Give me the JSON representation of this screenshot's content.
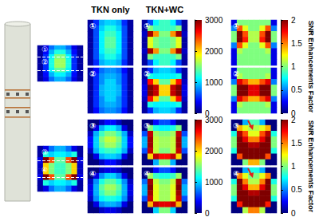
{
  "chart_data": {
    "type": "heatmap",
    "tick_labels": false,
    "column_titles": [
      "TKN only",
      "TKN+WC"
    ],
    "signal": {
      "color_range": [
        0,
        3000
      ],
      "colorbar_ticks": [
        0,
        1000,
        2000,
        3000
      ]
    },
    "factor": {
      "color_range": [
        0,
        2
      ],
      "colorbar_ticks": [
        0,
        0.5,
        1,
        1.5,
        2
      ],
      "colorbar_label": "SNR Enhancements Factor"
    },
    "overview": [
      {
        "slice_lines": [
          {
            "label": "①",
            "row": 2
          },
          {
            "label": "②",
            "row": 5
          }
        ],
        "cells": [
          [
            100,
            300,
            700,
            900,
            900,
            700,
            300,
            100
          ],
          [
            100,
            400,
            900,
            1200,
            1200,
            900,
            400,
            100
          ],
          [
            100,
            500,
            1100,
            1500,
            1500,
            1100,
            500,
            100
          ],
          [
            100,
            500,
            1200,
            1600,
            1600,
            1200,
            500,
            100
          ],
          [
            100,
            500,
            1200,
            1600,
            1600,
            1200,
            500,
            100
          ],
          [
            100,
            500,
            1100,
            1400,
            1400,
            1100,
            500,
            100
          ],
          [
            100,
            400,
            900,
            1100,
            1100,
            900,
            400,
            100
          ],
          [
            100,
            300,
            700,
            900,
            900,
            700,
            300,
            100
          ]
        ]
      },
      {
        "slice_lines": [
          {
            "label": "③",
            "row": 2
          },
          {
            "label": "④",
            "row": 5
          }
        ],
        "cells": [
          [
            100,
            300,
            700,
            900,
            900,
            700,
            300,
            100
          ],
          [
            100,
            1200,
            1000,
            1100,
            1100,
            1000,
            1200,
            100
          ],
          [
            300,
            3000,
            2400,
            1400,
            1400,
            2400,
            3000,
            300
          ],
          [
            200,
            2000,
            1500,
            1300,
            1300,
            1500,
            2000,
            200
          ],
          [
            200,
            2000,
            1500,
            1300,
            1300,
            1500,
            2000,
            200
          ],
          [
            300,
            3000,
            2400,
            1400,
            1400,
            2400,
            3000,
            300
          ],
          [
            100,
            1200,
            1000,
            1100,
            1100,
            1000,
            1200,
            100
          ],
          [
            100,
            300,
            700,
            900,
            900,
            700,
            300,
            100
          ]
        ]
      }
    ],
    "rows": [
      {
        "label": "①",
        "tkn": [
          [
            100,
            500,
            900,
            1000,
            1000,
            900,
            500,
            100
          ],
          [
            100,
            600,
            1000,
            1200,
            1200,
            1000,
            600,
            100
          ],
          [
            100,
            600,
            1100,
            1300,
            1300,
            1100,
            600,
            100
          ],
          [
            100,
            600,
            1100,
            1400,
            1400,
            1100,
            600,
            100
          ],
          [
            100,
            600,
            1100,
            1400,
            1400,
            1100,
            600,
            100
          ],
          [
            100,
            600,
            1100,
            1300,
            1300,
            1100,
            600,
            100
          ],
          [
            100,
            600,
            1000,
            1200,
            1200,
            1000,
            600,
            100
          ],
          [
            100,
            500,
            900,
            1000,
            1000,
            900,
            500,
            100
          ]
        ],
        "tkn_wc": [
          [
            100,
            600,
            1100,
            1300,
            1300,
            1100,
            600,
            100
          ],
          [
            100,
            1500,
            1300,
            1300,
            1300,
            1300,
            1500,
            100
          ],
          [
            200,
            2900,
            2200,
            1500,
            1500,
            2200,
            2900,
            200
          ],
          [
            100,
            1800,
            1500,
            1400,
            1400,
            1500,
            1800,
            100
          ],
          [
            100,
            1800,
            1500,
            1400,
            1400,
            1500,
            1800,
            100
          ],
          [
            200,
            2900,
            2200,
            1500,
            1500,
            2200,
            2900,
            200
          ],
          [
            100,
            1500,
            1300,
            1300,
            1300,
            1300,
            1500,
            100
          ],
          [
            100,
            600,
            1100,
            1300,
            1300,
            1100,
            600,
            100
          ]
        ],
        "factor": [
          [
            0.2,
            1.0,
            1.0,
            1.0,
            1.0,
            1.0,
            1.0,
            0.2
          ],
          [
            0.5,
            1.6,
            1.2,
            1.0,
            1.0,
            1.2,
            1.6,
            0.5
          ],
          [
            1.0,
            2.0,
            1.6,
            1.1,
            1.1,
            1.6,
            2.0,
            1.0
          ],
          [
            1.0,
            2.0,
            1.7,
            1.1,
            1.1,
            1.7,
            2.0,
            1.0
          ],
          [
            0.5,
            1.6,
            1.2,
            1.0,
            1.0,
            1.2,
            1.6,
            0.5
          ],
          [
            0.2,
            1.1,
            1.0,
            1.0,
            1.0,
            1.0,
            1.1,
            0.2
          ],
          [
            0.2,
            1.0,
            1.0,
            1.0,
            1.0,
            1.0,
            1.0,
            0.2
          ],
          [
            0.2,
            1.0,
            1.0,
            1.0,
            1.0,
            1.0,
            1.0,
            0.2
          ]
        ]
      },
      {
        "label": "②",
        "tkn": [
          [
            100,
            400,
            700,
            800,
            800,
            700,
            400,
            100
          ],
          [
            100,
            500,
            800,
            900,
            900,
            800,
            500,
            100
          ],
          [
            100,
            500,
            800,
            1000,
            1000,
            800,
            500,
            100
          ],
          [
            100,
            500,
            900,
            1000,
            1000,
            900,
            500,
            100
          ],
          [
            100,
            500,
            900,
            1000,
            1000,
            900,
            500,
            100
          ],
          [
            100,
            500,
            800,
            1000,
            1000,
            800,
            500,
            100
          ],
          [
            100,
            500,
            800,
            900,
            900,
            800,
            500,
            100
          ],
          [
            100,
            400,
            700,
            800,
            800,
            700,
            400,
            100
          ]
        ],
        "tkn_wc": [
          [
            100,
            500,
            900,
            1000,
            1000,
            900,
            500,
            100
          ],
          [
            100,
            1200,
            1100,
            1100,
            1100,
            1100,
            1200,
            100
          ],
          [
            200,
            2600,
            2000,
            1400,
            1400,
            2000,
            2600,
            200
          ],
          [
            300,
            3000,
            2800,
            2000,
            2000,
            2800,
            3000,
            300
          ],
          [
            300,
            3000,
            2800,
            2000,
            2000,
            2800,
            3000,
            300
          ],
          [
            200,
            2600,
            2000,
            1400,
            1400,
            2000,
            2600,
            200
          ],
          [
            100,
            1200,
            1100,
            1100,
            1100,
            1100,
            1200,
            100
          ],
          [
            100,
            500,
            900,
            1000,
            1000,
            900,
            500,
            100
          ]
        ],
        "factor": [
          [
            0.2,
            1.0,
            1.0,
            1.0,
            1.0,
            1.0,
            1.0,
            0.2
          ],
          [
            0.2,
            1.1,
            1.0,
            1.0,
            1.0,
            1.0,
            1.1,
            0.2
          ],
          [
            0.5,
            1.8,
            1.6,
            1.4,
            1.4,
            1.6,
            1.8,
            0.5
          ],
          [
            1.0,
            2.0,
            2.0,
            1.8,
            1.8,
            2.0,
            2.0,
            1.0
          ],
          [
            1.0,
            2.0,
            2.0,
            1.8,
            1.8,
            2.0,
            2.0,
            1.0
          ],
          [
            0.5,
            1.8,
            1.6,
            1.4,
            1.4,
            1.6,
            1.8,
            0.5
          ],
          [
            0.2,
            1.1,
            1.0,
            1.0,
            1.0,
            1.0,
            1.1,
            0.2
          ],
          [
            0.2,
            1.0,
            1.0,
            1.0,
            1.0,
            1.0,
            1.0,
            0.2
          ]
        ]
      },
      {
        "label": "③",
        "tkn": [
          [
            0,
            0,
            200,
            400,
            400,
            200,
            0,
            0
          ],
          [
            0,
            300,
            900,
            1100,
            1100,
            900,
            300,
            0
          ],
          [
            200,
            900,
            1300,
            1500,
            1500,
            1300,
            900,
            200
          ],
          [
            400,
            1000,
            1500,
            1700,
            1700,
            1500,
            1000,
            400
          ],
          [
            400,
            1000,
            1400,
            1600,
            1600,
            1400,
            1000,
            400
          ],
          [
            200,
            900,
            1200,
            1300,
            1300,
            1200,
            900,
            200
          ],
          [
            0,
            300,
            900,
            1000,
            1000,
            900,
            300,
            0
          ],
          [
            0,
            0,
            200,
            400,
            400,
            200,
            0,
            0
          ]
        ],
        "tkn_wc": [
          [
            0,
            0,
            400,
            600,
            600,
            400,
            0,
            0
          ],
          [
            0,
            1500,
            1200,
            1100,
            1100,
            1200,
            1500,
            0
          ],
          [
            600,
            2800,
            1600,
            1500,
            1500,
            1600,
            2800,
            600
          ],
          [
            900,
            2900,
            1700,
            1600,
            1600,
            1700,
            2900,
            900
          ],
          [
            900,
            2900,
            1700,
            1600,
            1600,
            1700,
            2900,
            900
          ],
          [
            600,
            2800,
            1700,
            1500,
            1500,
            1700,
            2800,
            600
          ],
          [
            0,
            2000,
            2800,
            2600,
            2600,
            2800,
            2000,
            0
          ],
          [
            0,
            0,
            900,
            1500,
            1500,
            900,
            0,
            0
          ]
        ],
        "factor": [
          [
            0,
            0,
            0.6,
            0.9,
            0.9,
            0.6,
            0,
            0
          ],
          [
            0,
            1.4,
            1.2,
            1.1,
            1.1,
            1.2,
            1.4,
            0
          ],
          [
            0.8,
            1.9,
            1.6,
            1.2,
            1.2,
            1.6,
            1.9,
            0.8
          ],
          [
            1.0,
            2.0,
            1.8,
            1.5,
            1.5,
            1.8,
            2.0,
            1.0
          ],
          [
            1.0,
            2.0,
            2.0,
            1.9,
            1.9,
            2.0,
            2.0,
            1.0
          ],
          [
            0.8,
            2.0,
            2.0,
            2.0,
            2.0,
            2.0,
            2.0,
            0.8
          ],
          [
            0,
            1.6,
            2.0,
            2.0,
            2.0,
            2.0,
            1.6,
            0
          ],
          [
            0,
            0,
            1.0,
            1.4,
            1.4,
            1.0,
            0,
            0
          ]
        ]
      },
      {
        "label": "④",
        "tkn": [
          [
            0,
            0,
            200,
            300,
            300,
            200,
            0,
            0
          ],
          [
            0,
            300,
            800,
            1000,
            1000,
            800,
            300,
            0
          ],
          [
            200,
            800,
            1200,
            1400,
            1400,
            1200,
            800,
            200
          ],
          [
            300,
            900,
            1400,
            1600,
            1600,
            1400,
            900,
            300
          ],
          [
            300,
            900,
            1300,
            1500,
            1500,
            1300,
            900,
            300
          ],
          [
            200,
            800,
            1100,
            1200,
            1200,
            1100,
            800,
            200
          ],
          [
            0,
            300,
            800,
            900,
            900,
            800,
            300,
            0
          ],
          [
            0,
            0,
            200,
            300,
            300,
            200,
            0,
            0
          ]
        ],
        "tkn_wc": [
          [
            0,
            0,
            400,
            600,
            600,
            400,
            0,
            0
          ],
          [
            0,
            1600,
            1300,
            1200,
            1200,
            1300,
            1600,
            0
          ],
          [
            700,
            2900,
            1700,
            1500,
            1500,
            1700,
            2900,
            700
          ],
          [
            900,
            3000,
            1800,
            1600,
            1600,
            1800,
            3000,
            900
          ],
          [
            900,
            2900,
            1800,
            1600,
            1600,
            1800,
            2900,
            900
          ],
          [
            600,
            2800,
            1800,
            1600,
            1600,
            1800,
            2800,
            600
          ],
          [
            0,
            2100,
            2800,
            2700,
            2700,
            2800,
            2100,
            0
          ],
          [
            0,
            0,
            1000,
            1500,
            1500,
            1000,
            0,
            0
          ]
        ],
        "factor": [
          [
            0,
            0,
            0.6,
            0.8,
            0.8,
            0.6,
            0,
            0
          ],
          [
            0,
            1.5,
            1.2,
            1.0,
            1.0,
            1.2,
            1.5,
            0
          ],
          [
            0.8,
            2.0,
            1.5,
            1.1,
            1.1,
            1.5,
            2.0,
            0.8
          ],
          [
            1.0,
            2.0,
            1.8,
            1.4,
            1.4,
            1.8,
            2.0,
            1.0
          ],
          [
            1.0,
            2.0,
            2.0,
            1.9,
            1.9,
            2.0,
            2.0,
            1.0
          ],
          [
            0.8,
            2.0,
            2.0,
            2.0,
            2.0,
            2.0,
            2.0,
            0.8
          ],
          [
            0,
            1.7,
            2.0,
            2.0,
            2.0,
            2.0,
            1.7,
            0
          ],
          [
            0,
            0,
            1.1,
            1.5,
            1.5,
            1.1,
            0,
            0
          ]
        ]
      }
    ]
  }
}
